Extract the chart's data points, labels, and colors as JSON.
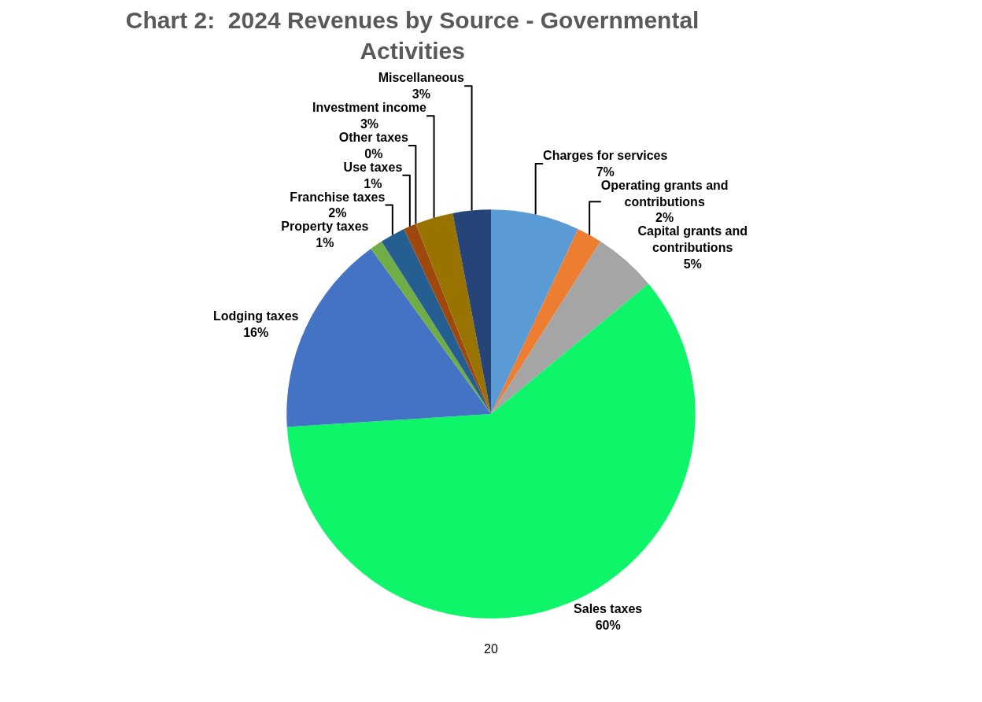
{
  "chart_data": {
    "type": "pie",
    "title": "Chart 2:  2024 Revenues by Source - Governmental Activities",
    "categories": [
      "Charges for services",
      "Operating grants and contributions",
      "Capital grants and contributions",
      "Sales taxes",
      "Lodging taxes",
      "Property taxes",
      "Franchise taxes",
      "Use taxes",
      "Other taxes",
      "Investment income",
      "Miscellaneous"
    ],
    "values": [
      7,
      2,
      5,
      60,
      16,
      1,
      2,
      1,
      0,
      3,
      3
    ],
    "colors": [
      "#5b9bd5",
      "#ed7d31",
      "#a5a5a5",
      "#0ef56a",
      "#4472c4",
      "#70ad47",
      "#255e91",
      "#9e480e",
      "#636363",
      "#997300",
      "#264478"
    ],
    "value_labels": [
      "7%",
      "2%",
      "5%",
      "60%",
      "16%",
      "1%",
      "2%",
      "1%",
      "0%",
      "3%",
      "3%"
    ],
    "legend": false,
    "annotations": [
      "20"
    ]
  }
}
